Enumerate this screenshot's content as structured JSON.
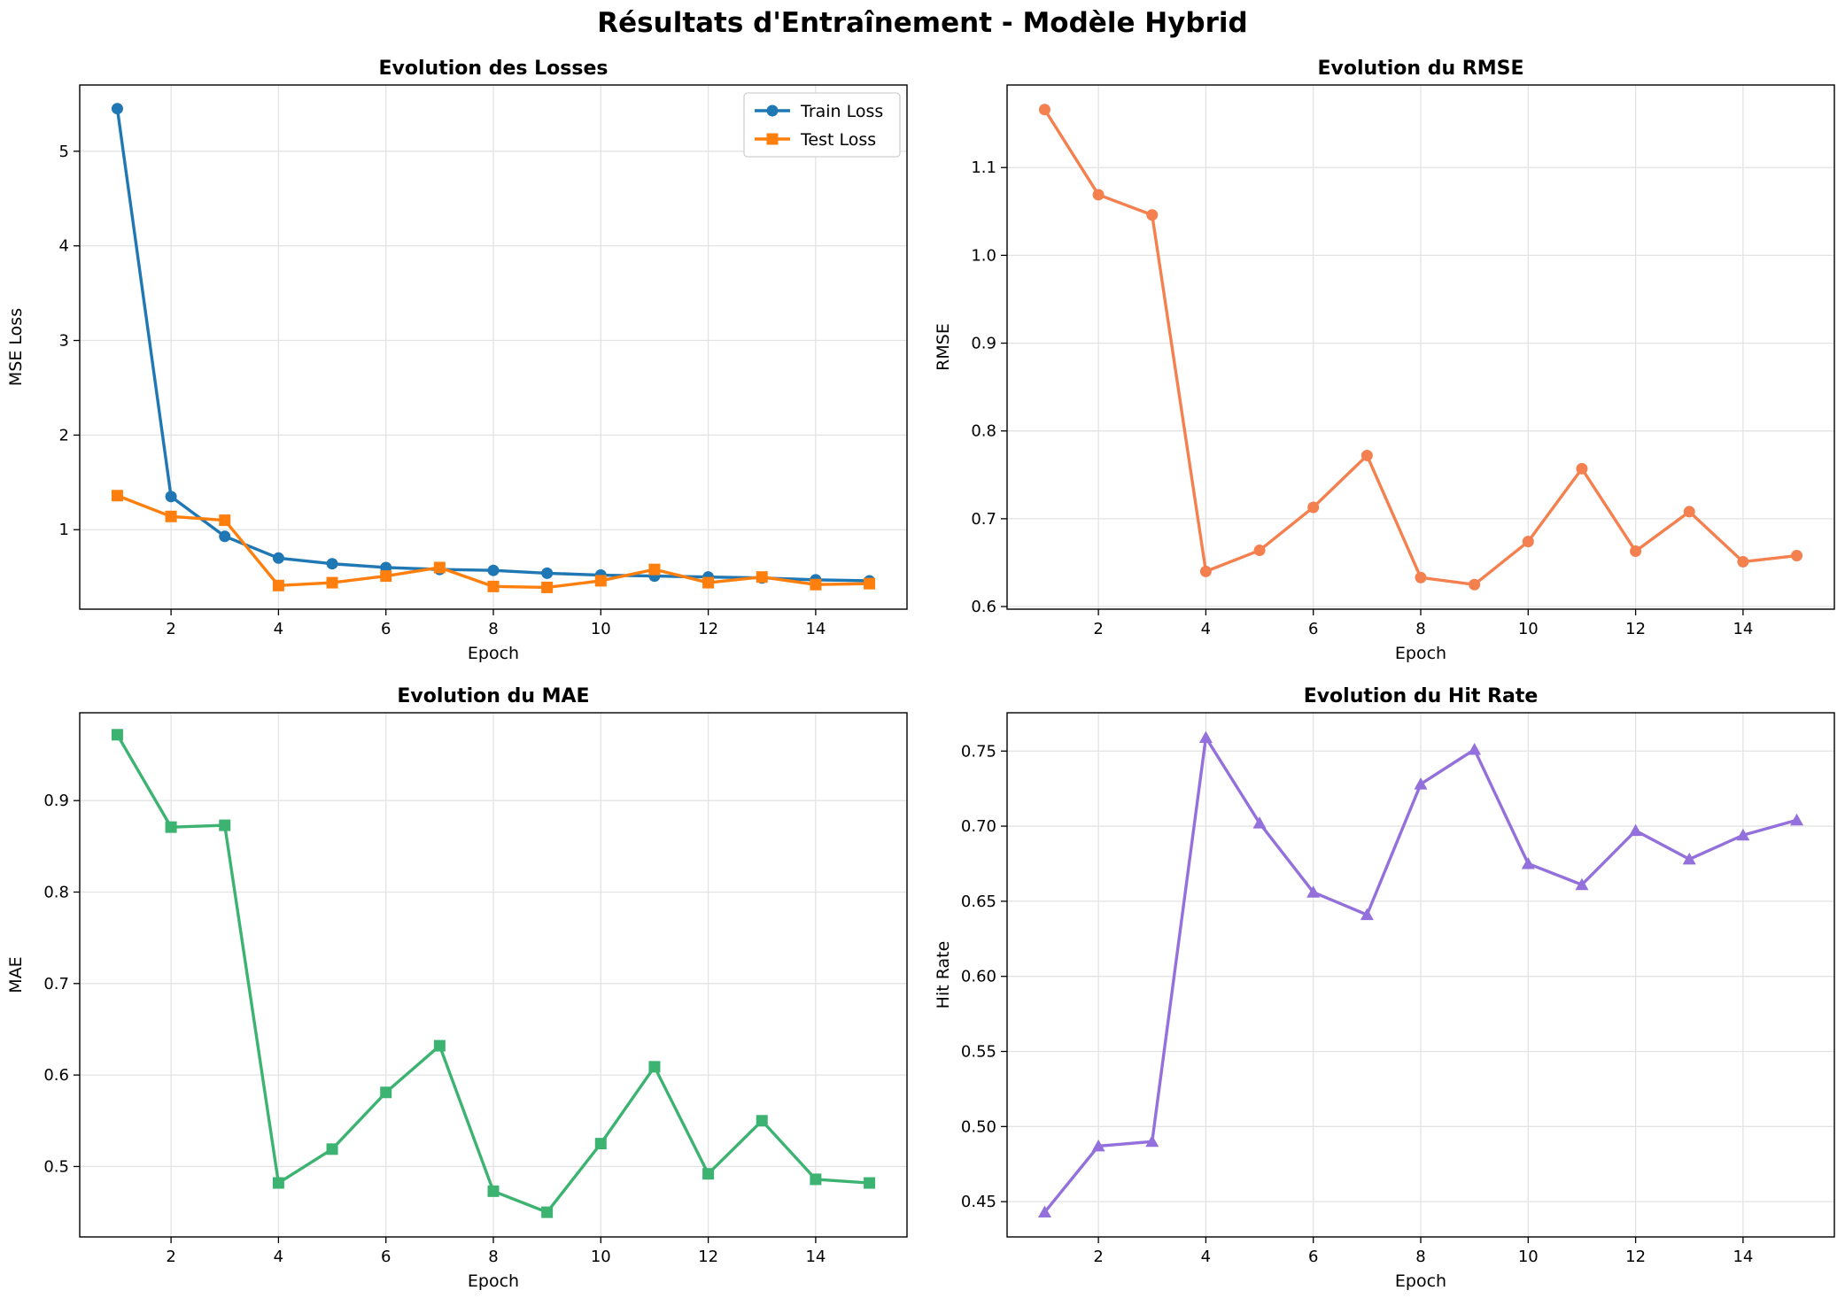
{
  "figure": {
    "suptitle": "Résultats d'Entraînement - Modèle Hybrid"
  },
  "chart_data": [
    {
      "type": "line",
      "title": "Evolution des Losses",
      "xlabel": "Epoch",
      "ylabel": "MSE Loss",
      "xlim": [
        0.3,
        15.7
      ],
      "ylim": [
        0.16,
        5.7
      ],
      "xticks": [
        2,
        4,
        6,
        8,
        10,
        12,
        14
      ],
      "yticks": [
        1,
        2,
        3,
        4,
        5
      ],
      "grid": true,
      "legend": "top-right",
      "x": [
        1,
        2,
        3,
        4,
        5,
        6,
        7,
        8,
        9,
        10,
        11,
        12,
        13,
        14,
        15
      ],
      "series": [
        {
          "name": "Train Loss",
          "color": "#1f77b4",
          "marker": "circle",
          "values": [
            5.45,
            1.35,
            0.93,
            0.7,
            0.64,
            0.6,
            0.58,
            0.57,
            0.54,
            0.52,
            0.51,
            0.5,
            0.49,
            0.47,
            0.46
          ]
        },
        {
          "name": "Test Loss",
          "color": "#ff7f0e",
          "marker": "square",
          "values": [
            1.36,
            1.14,
            1.1,
            0.41,
            0.44,
            0.51,
            0.6,
            0.4,
            0.39,
            0.46,
            0.58,
            0.44,
            0.5,
            0.42,
            0.43
          ]
        }
      ]
    },
    {
      "type": "line",
      "title": "Evolution du RMSE",
      "xlabel": "Epoch",
      "ylabel": "RMSE",
      "xlim": [
        0.3,
        15.7
      ],
      "ylim": [
        0.597,
        1.194
      ],
      "xticks": [
        2,
        4,
        6,
        8,
        10,
        12,
        14
      ],
      "yticks": [
        0.6,
        0.7,
        0.8,
        0.9,
        1.0,
        1.1
      ],
      "ytick_labels": [
        "0.6",
        "0.7",
        "0.8",
        "0.9",
        "1.0",
        "1.1"
      ],
      "grid": true,
      "x": [
        1,
        2,
        3,
        4,
        5,
        6,
        7,
        8,
        9,
        10,
        11,
        12,
        13,
        14,
        15
      ],
      "series": [
        {
          "color": "#f4804f",
          "marker": "circle",
          "values": [
            1.166,
            1.069,
            1.046,
            0.64,
            0.664,
            0.713,
            0.772,
            0.633,
            0.625,
            0.674,
            0.757,
            0.663,
            0.708,
            0.651,
            0.658
          ]
        }
      ]
    },
    {
      "type": "line",
      "title": "Evolution du MAE",
      "xlabel": "Epoch",
      "ylabel": "MAE",
      "xlim": [
        0.3,
        15.7
      ],
      "ylim": [
        0.423,
        0.996
      ],
      "xticks": [
        2,
        4,
        6,
        8,
        10,
        12,
        14
      ],
      "yticks": [
        0.5,
        0.6,
        0.7,
        0.8,
        0.9
      ],
      "grid": true,
      "x": [
        1,
        2,
        3,
        4,
        5,
        6,
        7,
        8,
        9,
        10,
        11,
        12,
        13,
        14,
        15
      ],
      "series": [
        {
          "color": "#3cb371",
          "marker": "square",
          "values": [
            0.972,
            0.871,
            0.873,
            0.482,
            0.519,
            0.581,
            0.632,
            0.473,
            0.45,
            0.525,
            0.609,
            0.492,
            0.55,
            0.486,
            0.482
          ]
        }
      ]
    },
    {
      "type": "line",
      "title": "Evolution du Hit Rate",
      "xlabel": "Epoch",
      "ylabel": "Hit Rate",
      "xlim": [
        0.3,
        15.7
      ],
      "ylim": [
        0.4265,
        0.7755
      ],
      "xticks": [
        2,
        4,
        6,
        8,
        10,
        12,
        14
      ],
      "yticks": [
        0.45,
        0.5,
        0.55,
        0.6,
        0.65,
        0.7,
        0.75
      ],
      "ytick_labels": [
        "0.45",
        "0.50",
        "0.55",
        "0.60",
        "0.65",
        "0.70",
        "0.75"
      ],
      "grid": true,
      "x": [
        1,
        2,
        3,
        4,
        5,
        6,
        7,
        8,
        9,
        10,
        11,
        12,
        13,
        14,
        15
      ],
      "series": [
        {
          "color": "#9370db",
          "marker": "triangle",
          "values": [
            0.443,
            0.487,
            0.49,
            0.759,
            0.702,
            0.656,
            0.641,
            0.728,
            0.751,
            0.675,
            0.661,
            0.697,
            0.678,
            0.694,
            0.704
          ]
        }
      ]
    }
  ]
}
